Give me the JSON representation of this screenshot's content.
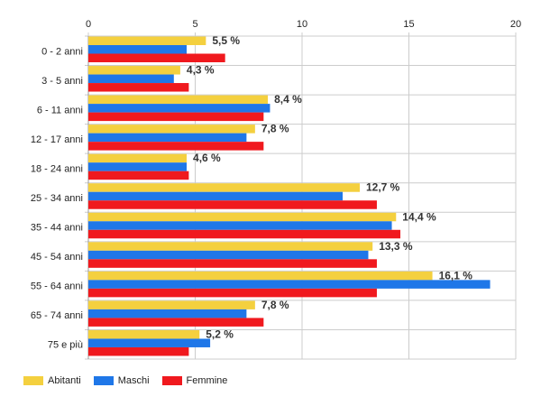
{
  "chart_data": {
    "type": "bar",
    "orientation": "horizontal",
    "categories": [
      "0 - 2 anni",
      "3 - 5 anni",
      "6 - 11 anni",
      "12 - 17 anni",
      "18 - 24 anni",
      "25 - 34 anni",
      "35 - 44 anni",
      "45 - 54 anni",
      "55 - 64 anni",
      "65 - 74 anni",
      "75 e più"
    ],
    "series": [
      {
        "name": "Abitanti",
        "color": "#f4d03f",
        "values": [
          5.5,
          4.3,
          8.4,
          7.8,
          4.6,
          12.7,
          14.4,
          13.3,
          16.1,
          7.8,
          5.2
        ]
      },
      {
        "name": "Maschi",
        "color": "#1f77e8",
        "values": [
          4.6,
          4.0,
          8.5,
          7.4,
          4.6,
          11.9,
          14.2,
          13.1,
          18.8,
          7.4,
          5.7
        ]
      },
      {
        "name": "Femmine",
        "color": "#f0191e",
        "values": [
          6.4,
          4.7,
          8.2,
          8.2,
          4.7,
          13.5,
          14.6,
          13.5,
          13.5,
          8.2,
          4.7
        ]
      }
    ],
    "data_labels": [
      "5,5 %",
      "4,3 %",
      "8,4 %",
      "7,8 %",
      "4,6 %",
      "12,7 %",
      "14,4 %",
      "13,3 %",
      "16,1 %",
      "7,8 %",
      "5,2 %"
    ],
    "xlim": [
      0,
      20
    ],
    "xticks": [
      0,
      5,
      10,
      15,
      20
    ],
    "xtick_labels": [
      "0",
      "5",
      "10",
      "15",
      "20"
    ],
    "grid": true,
    "legend_position": "bottom-left"
  },
  "legend": {
    "items": [
      {
        "label": "Abitanti",
        "color": "#f4d03f"
      },
      {
        "label": "Maschi",
        "color": "#1f77e8"
      },
      {
        "label": "Femmine",
        "color": "#f0191e"
      }
    ]
  }
}
